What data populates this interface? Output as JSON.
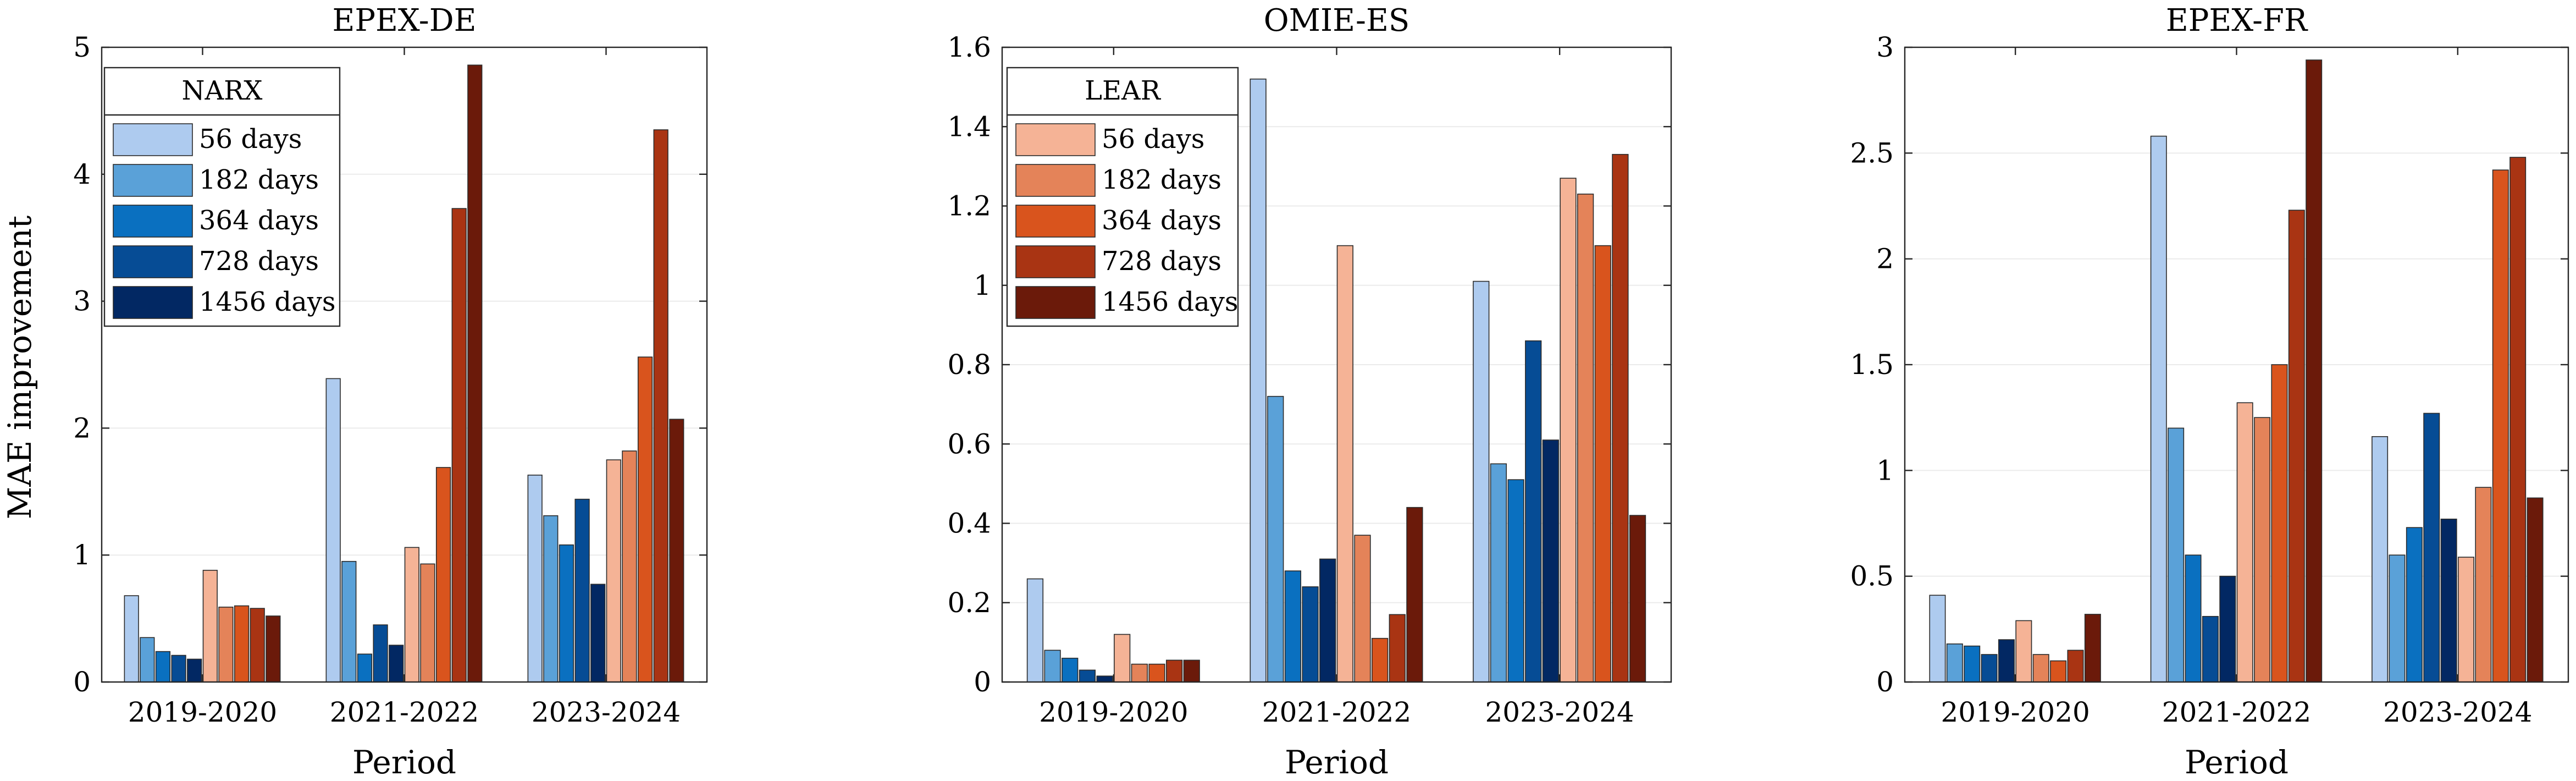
{
  "ylabel": "MAE improvement",
  "colors": {
    "NARX": [
      "#aecbef",
      "#5aa1d8",
      "#0a70c0",
      "#064c95",
      "#022863"
    ],
    "LEAR": [
      "#f5b396",
      "#e48359",
      "#d9541d",
      "#a93413",
      "#6b1a0a"
    ],
    "grid": "#ebebeb",
    "axis": "#262626"
  },
  "legend_labels": [
    "56 days",
    "182 days",
    "364 days",
    "728 days",
    "1456 days"
  ],
  "chart_data": [
    {
      "type": "bar",
      "title": "EPEX-DE",
      "xlabel": "Period",
      "ylabel": "MAE improvement",
      "categories": [
        "2019-2020",
        "2021-2022",
        "2023-2024"
      ],
      "ylim": [
        0,
        5
      ],
      "yticks": [
        0,
        1,
        2,
        3,
        4,
        5
      ],
      "ytick_labels": [
        "0",
        "1",
        "2",
        "3",
        "4",
        "5"
      ],
      "grid": true,
      "legend": {
        "title": "NARX",
        "model": "NARX",
        "placement": "top-left"
      },
      "series": [
        {
          "name": "NARX 56 days",
          "model": "NARX",
          "values": [
            0.68,
            2.39,
            1.63
          ]
        },
        {
          "name": "NARX 182 days",
          "model": "NARX",
          "values": [
            0.35,
            0.95,
            1.31
          ]
        },
        {
          "name": "NARX 364 days",
          "model": "NARX",
          "values": [
            0.24,
            0.22,
            1.08
          ]
        },
        {
          "name": "NARX 728 days",
          "model": "NARX",
          "values": [
            0.21,
            0.45,
            1.44
          ]
        },
        {
          "name": "NARX 1456 days",
          "model": "NARX",
          "values": [
            0.18,
            0.29,
            0.77
          ]
        },
        {
          "name": "LEAR 56 days",
          "model": "LEAR",
          "values": [
            0.88,
            1.06,
            1.75
          ]
        },
        {
          "name": "LEAR 182 days",
          "model": "LEAR",
          "values": [
            0.59,
            0.93,
            1.82
          ]
        },
        {
          "name": "LEAR 364 days",
          "model": "LEAR",
          "values": [
            0.6,
            1.69,
            2.56
          ]
        },
        {
          "name": "LEAR 728 days",
          "model": "LEAR",
          "values": [
            0.58,
            3.73,
            4.35
          ]
        },
        {
          "name": "LEAR 1456 days",
          "model": "LEAR",
          "values": [
            0.52,
            4.86,
            2.07
          ]
        }
      ]
    },
    {
      "type": "bar",
      "title": "OMIE-ES",
      "xlabel": "Period",
      "ylabel": "",
      "categories": [
        "2019-2020",
        "2021-2022",
        "2023-2024"
      ],
      "ylim": [
        0,
        1.6
      ],
      "yticks": [
        0,
        0.2,
        0.4,
        0.6,
        0.8,
        1.0,
        1.2,
        1.4,
        1.6
      ],
      "ytick_labels": [
        "0",
        "0.2",
        "0.4",
        "0.6",
        "0.8",
        "1",
        "1.2",
        "1.4",
        "1.6"
      ],
      "grid": true,
      "legend": {
        "title": "LEAR",
        "model": "LEAR",
        "placement": "top-left"
      },
      "series": [
        {
          "name": "NARX 56 days",
          "model": "NARX",
          "values": [
            0.26,
            1.52,
            1.01
          ]
        },
        {
          "name": "NARX 182 days",
          "model": "NARX",
          "values": [
            0.08,
            0.72,
            0.55
          ]
        },
        {
          "name": "NARX 364 days",
          "model": "NARX",
          "values": [
            0.06,
            0.28,
            0.51
          ]
        },
        {
          "name": "NARX 728 days",
          "model": "NARX",
          "values": [
            0.03,
            0.24,
            0.86
          ]
        },
        {
          "name": "NARX 1456 days",
          "model": "NARX",
          "values": [
            0.015,
            0.31,
            0.61
          ]
        },
        {
          "name": "LEAR 56 days",
          "model": "LEAR",
          "values": [
            0.12,
            1.1,
            1.27
          ]
        },
        {
          "name": "LEAR 182 days",
          "model": "LEAR",
          "values": [
            0.045,
            0.37,
            1.23
          ]
        },
        {
          "name": "LEAR 364 days",
          "model": "LEAR",
          "values": [
            0.045,
            0.11,
            1.1
          ]
        },
        {
          "name": "LEAR 728 days",
          "model": "LEAR",
          "values": [
            0.055,
            0.17,
            1.33
          ]
        },
        {
          "name": "LEAR 1456 days",
          "model": "LEAR",
          "values": [
            0.055,
            0.44,
            0.42
          ]
        }
      ]
    },
    {
      "type": "bar",
      "title": "EPEX-FR",
      "xlabel": "Period",
      "ylabel": "",
      "categories": [
        "2019-2020",
        "2021-2022",
        "2023-2024"
      ],
      "ylim": [
        0,
        3
      ],
      "yticks": [
        0,
        0.5,
        1.0,
        1.5,
        2.0,
        2.5,
        3.0
      ],
      "ytick_labels": [
        "0",
        "0.5",
        "1",
        "1.5",
        "2",
        "2.5",
        "3"
      ],
      "grid": true,
      "legend": null,
      "series": [
        {
          "name": "NARX 56 days",
          "model": "NARX",
          "values": [
            0.41,
            2.58,
            1.16
          ]
        },
        {
          "name": "NARX 182 days",
          "model": "NARX",
          "values": [
            0.18,
            1.2,
            0.6
          ]
        },
        {
          "name": "NARX 364 days",
          "model": "NARX",
          "values": [
            0.17,
            0.6,
            0.73
          ]
        },
        {
          "name": "NARX 728 days",
          "model": "NARX",
          "values": [
            0.13,
            0.31,
            1.27
          ]
        },
        {
          "name": "NARX 1456 days",
          "model": "NARX",
          "values": [
            0.2,
            0.5,
            0.77
          ]
        },
        {
          "name": "LEAR 56 days",
          "model": "LEAR",
          "values": [
            0.29,
            1.32,
            0.59
          ]
        },
        {
          "name": "LEAR 182 days",
          "model": "LEAR",
          "values": [
            0.13,
            1.25,
            0.92
          ]
        },
        {
          "name": "LEAR 364 days",
          "model": "LEAR",
          "values": [
            0.1,
            1.5,
            2.42
          ]
        },
        {
          "name": "LEAR 728 days",
          "model": "LEAR",
          "values": [
            0.15,
            2.23,
            2.48
          ]
        },
        {
          "name": "LEAR 1456 days",
          "model": "LEAR",
          "values": [
            0.32,
            2.94,
            0.87
          ]
        }
      ]
    }
  ]
}
